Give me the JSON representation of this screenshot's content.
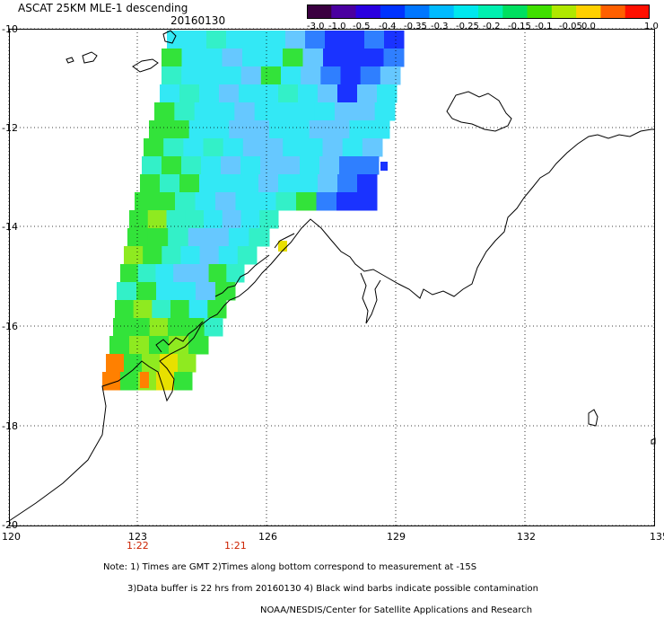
{
  "header": {
    "title": "ASCAT 25KM MLE-1 descending",
    "date": "20160130"
  },
  "colorbar": {
    "tick_labels": [
      "-3.0",
      "-1.0",
      "-0.5",
      "-0.4",
      "-0.35",
      "-0.3",
      "-0.25",
      "-0.2",
      "-0.15",
      "-0.1",
      "-0.05",
      "0.0",
      "1.0"
    ],
    "colors": [
      "#3a0040",
      "#4a00a0",
      "#2a00e0",
      "#0033ff",
      "#0077ff",
      "#00bbff",
      "#00e8ee",
      "#00f0b0",
      "#00e060",
      "#40e000",
      "#b0e800",
      "#ffd000",
      "#ff6000",
      "#ff1000"
    ]
  },
  "map": {
    "lat_labels": [
      "-10",
      "-12",
      "-14",
      "-16",
      "-18",
      "-20"
    ],
    "lon_labels": [
      "120",
      "123",
      "126",
      "129",
      "132",
      "135"
    ],
    "time_labels": [
      "1:22",
      "1:21"
    ],
    "colors": {
      "blue": "#1a33ff",
      "midblue": "#2f7fff",
      "lightblue": "#66c8ff",
      "cyan": "#33e8f5",
      "aqua": "#33f0c8",
      "green": "#33e33a",
      "lime": "#8fea20",
      "yellow": "#e8e000",
      "orange": "#ff8000"
    }
  },
  "note": {
    "line1": "Note: 1) Times are GMT 2)Times along bottom correspond to measurement at -15S",
    "line2": "3)Data buffer is 22 hrs from 20160130 4) Black wind barbs indicate possible contamination",
    "line3": "NOAA/NESDIS/Center for Satellite Applications and Research"
  }
}
